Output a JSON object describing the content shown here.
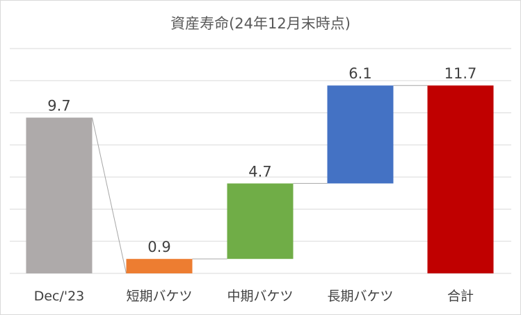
{
  "chart_data": {
    "type": "bar",
    "subtype": "waterfall",
    "title": "資産寿命(24年12月末時点)",
    "categories": [
      "Dec/'23",
      "短期バケツ",
      "中期バケツ",
      "長期バケツ",
      "合計"
    ],
    "bars": [
      {
        "category": "Dec/'23",
        "start": 0,
        "end": 9.7,
        "label": "9.7",
        "color": "#aeaaaa"
      },
      {
        "category": "短期バケツ",
        "start": 0,
        "end": 0.9,
        "label": "0.9",
        "color": "#ed7d31"
      },
      {
        "category": "中期バケツ",
        "start": 0.9,
        "end": 5.6,
        "label": "4.7",
        "color": "#70ad47"
      },
      {
        "category": "長期バケツ",
        "start": 5.6,
        "end": 11.7,
        "label": "6.1",
        "color": "#4472c4"
      },
      {
        "category": "合計",
        "start": 0,
        "end": 11.7,
        "label": "11.7",
        "color": "#c00000"
      }
    ],
    "ylim": [
      0,
      14
    ],
    "gridlines": [
      2,
      4,
      6,
      8,
      10,
      12,
      14
    ],
    "grid": true,
    "xlabel": "",
    "ylabel": "",
    "legend": "none"
  }
}
